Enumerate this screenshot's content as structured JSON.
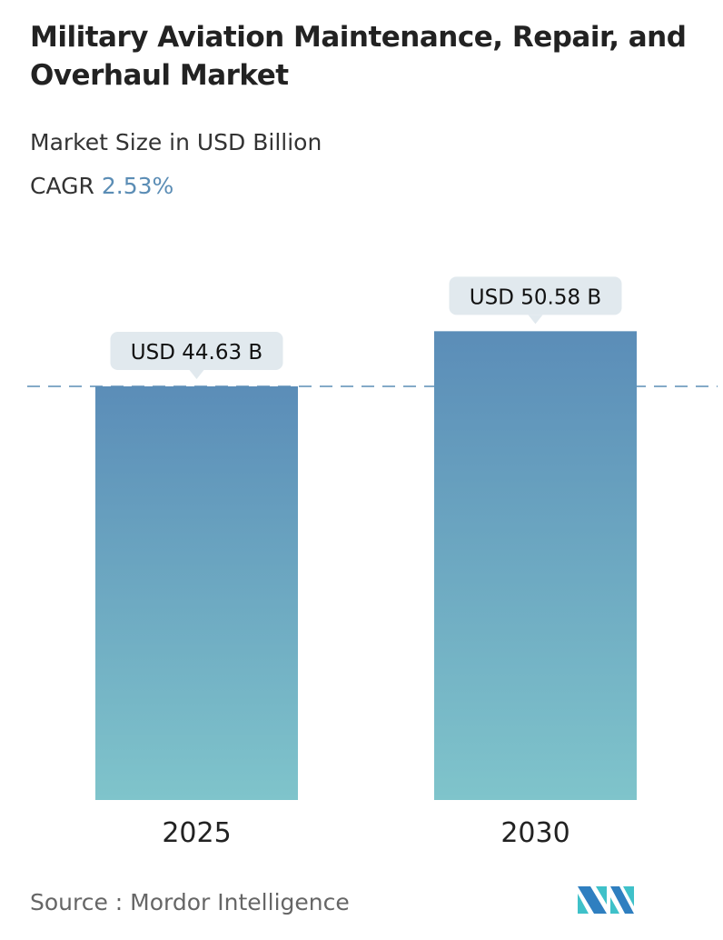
{
  "header": {
    "title": "Military Aviation Maintenance, Repair, and Overhaul Market",
    "subtitle": "Market Size in USD Billion",
    "cagr_label": "CAGR",
    "cagr_value": "2.53%"
  },
  "chart_data": {
    "type": "bar",
    "categories": [
      "2025",
      "2030"
    ],
    "values": [
      44.63,
      50.58
    ],
    "data_labels": [
      "USD 44.63 B",
      "USD 50.58 B"
    ],
    "ylabel": "Market Size in USD Billion",
    "reference_line": 44.63,
    "grid": false,
    "colors": {
      "bar_top": "#5b8db8",
      "bar_bottom": "#7fc4cb",
      "label_bg": "#e1e9ee",
      "dash": "#5b8db5"
    }
  },
  "footer": {
    "source": "Source :  Mordor Intelligence",
    "logo_text": "Mordor Intelligence"
  }
}
